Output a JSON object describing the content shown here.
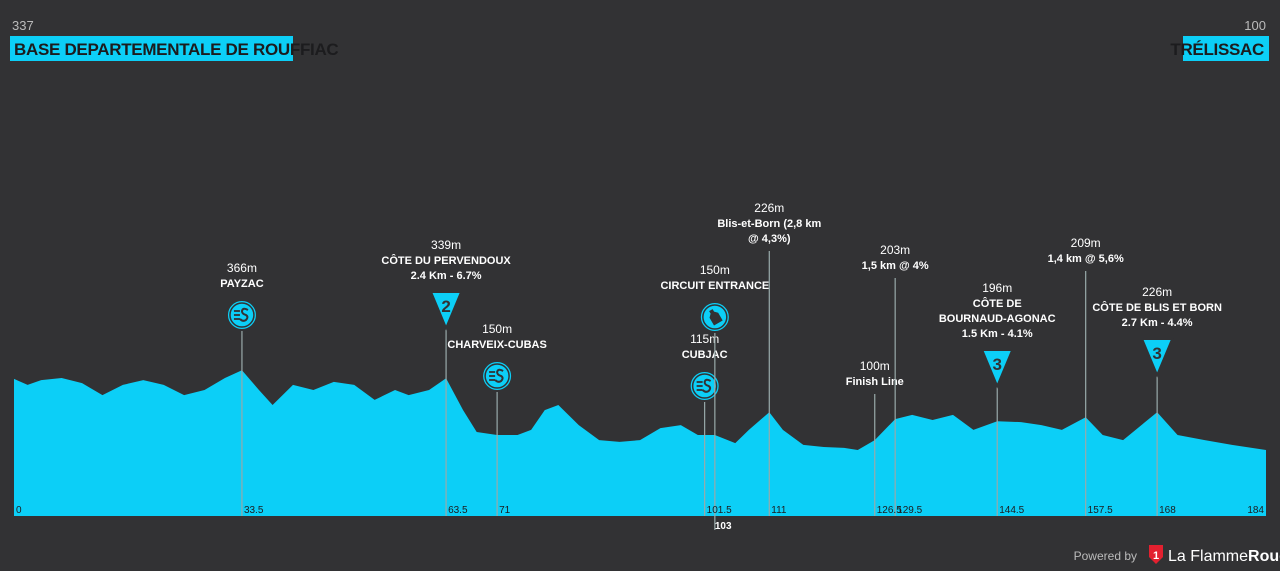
{
  "chart_data": {
    "type": "area",
    "start": {
      "elevation": "337",
      "name": "BASE DEPARTEMENTALE DE ROUFFIAC"
    },
    "finish": {
      "elevation": "100",
      "name": "TRÉLISSAC"
    },
    "color": "#0ccff7",
    "x": [
      0,
      2,
      4,
      7,
      10,
      13,
      16,
      19,
      22,
      25,
      28,
      31,
      33.5,
      36,
      38,
      41,
      44,
      47,
      50,
      53,
      56,
      58,
      61,
      63.5,
      66,
      68,
      71,
      74,
      76,
      78,
      80,
      83,
      86,
      89,
      92,
      95,
      98,
      100.5,
      103,
      106,
      108,
      111,
      113,
      116,
      119,
      122,
      124,
      126.5,
      129.5,
      132,
      135,
      138,
      141,
      144.5,
      148,
      151,
      154,
      157.5,
      160,
      163,
      168,
      171,
      175,
      179,
      184
    ],
    "values": [
      337,
      317,
      333,
      340,
      323,
      283,
      317,
      333,
      317,
      283,
      300,
      340,
      366,
      300,
      250,
      317,
      300,
      327,
      317,
      267,
      300,
      283,
      300,
      339,
      233,
      160,
      150,
      150,
      167,
      233,
      250,
      183,
      133,
      127,
      133,
      173,
      183,
      150,
      150,
      123,
      167,
      226,
      167,
      117,
      110,
      107,
      100,
      133,
      203,
      217,
      200,
      217,
      167,
      196,
      193,
      183,
      167,
      209,
      150,
      133,
      226,
      150,
      133,
      117,
      100
    ],
    "xlim": [
      0,
      184
    ],
    "ylim": [
      -120,
      1000
    ],
    "xticks": [
      0,
      33.5,
      63.5,
      71,
      101.5,
      103,
      111,
      126.5,
      129.5,
      144.5,
      157.5,
      168,
      184
    ],
    "annotations": [
      {
        "km": 33.5,
        "elevation": "366m",
        "lines": [
          "PAYZAC"
        ],
        "icon": "sprint"
      },
      {
        "km": 63.5,
        "elevation": "339m",
        "lines": [
          "CÔTE DU PERVENDOUX",
          "2.4 Km - 6.7%"
        ],
        "icon": "kom",
        "category": "2"
      },
      {
        "km": 71,
        "elevation": "150m",
        "lines": [
          "CHARVEIX-CUBAS"
        ],
        "icon": "sprint"
      },
      {
        "km": 101.5,
        "elevation": "115m",
        "lines": [
          "CUBJAC"
        ],
        "icon": "sprint"
      },
      {
        "km": 103,
        "elevation": "150m",
        "lines": [
          "CIRCUIT ENTRANCE"
        ],
        "icon": "feed"
      },
      {
        "km": 111,
        "elevation": "226m",
        "lines": [
          "Blis-et-Born (2,8 km",
          "@ 4,3%)"
        ]
      },
      {
        "km": 126.5,
        "elevation": "100m",
        "lines": [
          "Finish Line"
        ]
      },
      {
        "km": 129.5,
        "elevation": "203m",
        "lines": [
          "1,5 km @ 4%"
        ]
      },
      {
        "km": 144.5,
        "elevation": "196m",
        "lines": [
          "CÔTE DE",
          "BOURNAUD-AGONAC",
          "1.5 Km - 4.1%"
        ],
        "icon": "kom",
        "category": "3"
      },
      {
        "km": 157.5,
        "elevation": "209m",
        "lines": [
          "1,4 km @ 5,6%"
        ]
      },
      {
        "km": 168,
        "elevation": "226m",
        "lines": [
          "CÔTE DE BLIS ET BORN",
          "2.7 Km - 4.4%"
        ],
        "icon": "kom",
        "category": "3"
      }
    ]
  },
  "footer": {
    "powered": "Powered by",
    "logo": "1",
    "brand": [
      "La Flamme",
      "Rouge"
    ]
  }
}
